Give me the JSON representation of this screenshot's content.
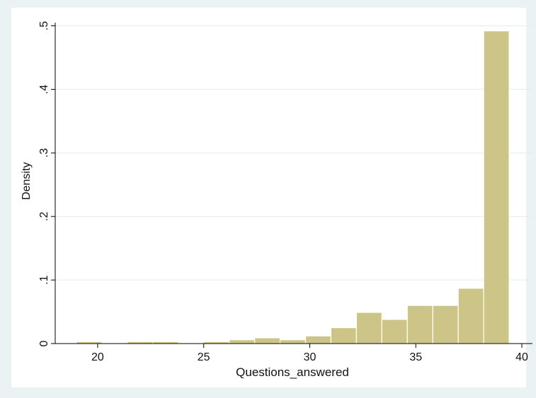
{
  "chart_data": {
    "type": "bar",
    "title": "",
    "xlabel": "Questions_answered",
    "ylabel": "Density",
    "xlim": [
      18,
      40.5
    ],
    "ylim": [
      0,
      0.505
    ],
    "xticks": [
      20,
      25,
      30,
      35,
      40
    ],
    "xtick_labels": [
      "20",
      "25",
      "30",
      "35",
      "40"
    ],
    "yticks": [
      0,
      0.1,
      0.2,
      0.3,
      0.4,
      0.5
    ],
    "ytick_labels": [
      "0",
      ".1",
      ".2",
      ".3",
      ".4",
      ".5"
    ],
    "grid": true,
    "legend": "none",
    "bar_color": "#cdc587",
    "bar_edge_color": "#ffffff",
    "bins": [
      {
        "x0": 19.0,
        "x1": 20.2,
        "density": 0.003
      },
      {
        "x0": 21.4,
        "x1": 22.6,
        "density": 0.003
      },
      {
        "x0": 22.6,
        "x1": 23.8,
        "density": 0.003
      },
      {
        "x0": 25.0,
        "x1": 26.2,
        "density": 0.003
      },
      {
        "x0": 26.2,
        "x1": 27.4,
        "density": 0.006
      },
      {
        "x0": 27.4,
        "x1": 28.6,
        "density": 0.009
      },
      {
        "x0": 28.6,
        "x1": 29.8,
        "density": 0.006
      },
      {
        "x0": 29.8,
        "x1": 31.0,
        "density": 0.012
      },
      {
        "x0": 31.0,
        "x1": 32.2,
        "density": 0.025
      },
      {
        "x0": 32.2,
        "x1": 33.4,
        "density": 0.049
      },
      {
        "x0": 33.4,
        "x1": 34.6,
        "density": 0.038
      },
      {
        "x0": 34.6,
        "x1": 35.8,
        "density": 0.06
      },
      {
        "x0": 35.8,
        "x1": 37.0,
        "density": 0.06
      },
      {
        "x0": 37.0,
        "x1": 38.2,
        "density": 0.087
      },
      {
        "x0": 38.2,
        "x1": 39.4,
        "density": 0.492
      }
    ]
  }
}
